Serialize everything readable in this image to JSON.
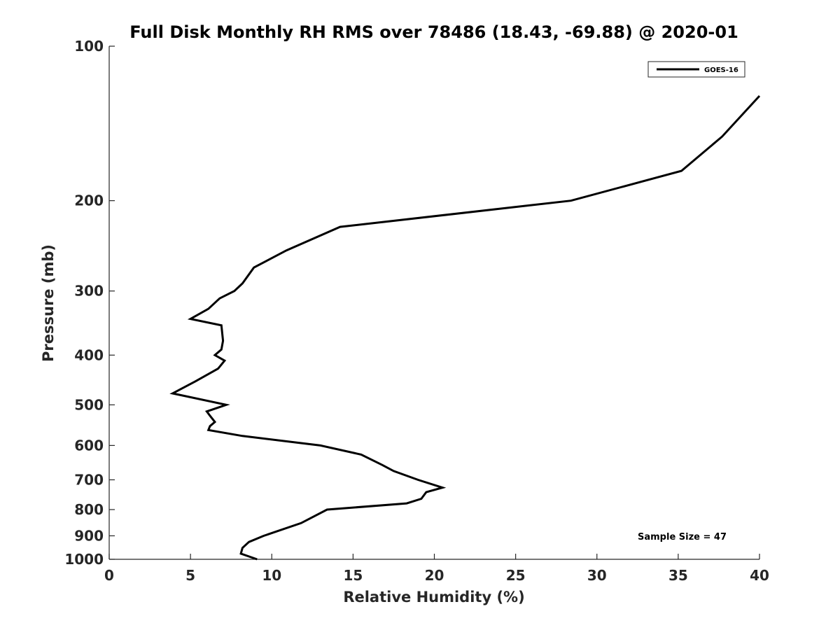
{
  "chart_data": {
    "type": "line",
    "title": "Full Disk Monthly RH RMS over 78486 (18.43, -69.88) @ 2020-01",
    "xlabel": "Relative Humidity (%)",
    "ylabel": "Pressure (mb)",
    "xlim": [
      0,
      40
    ],
    "ylim": [
      100,
      1000
    ],
    "yscale": "log",
    "reverse_y": true,
    "xticks": [
      "0",
      "5",
      "10",
      "15",
      "20",
      "25",
      "30",
      "35",
      "40"
    ],
    "yticks": [
      "100",
      "200",
      "300",
      "400",
      "500",
      "600",
      "700",
      "800",
      "900",
      "1000"
    ],
    "grid": false,
    "legend_position": "top-right",
    "series": [
      {
        "name": "GOES-16",
        "color": "#000000",
        "points": [
          [
            9.1,
            1000
          ],
          [
            8.1,
            975
          ],
          [
            8.2,
            950
          ],
          [
            8.6,
            925
          ],
          [
            9.5,
            900
          ],
          [
            11.8,
            850
          ],
          [
            13.4,
            800
          ],
          [
            18.3,
            778
          ],
          [
            19.2,
            762
          ],
          [
            19.5,
            740
          ],
          [
            20.5,
            725
          ],
          [
            19.0,
            700
          ],
          [
            17.5,
            673
          ],
          [
            16.8,
            655
          ],
          [
            15.5,
            625
          ],
          [
            13.0,
            600
          ],
          [
            8.2,
            575
          ],
          [
            6.1,
            560
          ],
          [
            6.2,
            550
          ],
          [
            6.5,
            540
          ],
          [
            6.2,
            525
          ],
          [
            6.0,
            515
          ],
          [
            7.2,
            500
          ],
          [
            3.9,
            475
          ],
          [
            5.3,
            450
          ],
          [
            6.7,
            425
          ],
          [
            7.1,
            410
          ],
          [
            6.5,
            400
          ],
          [
            6.9,
            390
          ],
          [
            7.0,
            375
          ],
          [
            6.9,
            350
          ],
          [
            5.0,
            340
          ],
          [
            6.1,
            325
          ],
          [
            6.8,
            310
          ],
          [
            7.7,
            300
          ],
          [
            8.2,
            290
          ],
          [
            8.9,
            270
          ],
          [
            10.9,
            250
          ],
          [
            14.2,
            225
          ],
          [
            28.4,
            200
          ],
          [
            35.2,
            175
          ],
          [
            37.7,
            150
          ],
          [
            40.0,
            125
          ]
        ]
      }
    ],
    "annotation": "Sample Size = 47"
  }
}
